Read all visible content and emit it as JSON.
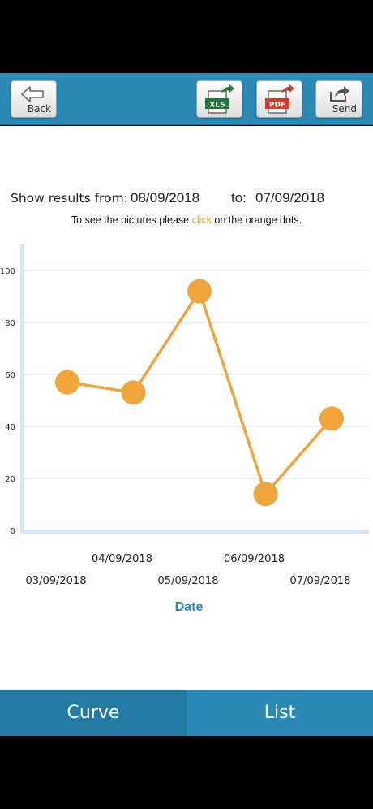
{
  "toolbar": {
    "back_label": "Back",
    "xls_label": "XLS",
    "pdf_label": "PDF",
    "send_label": "Send",
    "colors": {
      "bar": "#2a8ab5",
      "xls": "#1f7a3a",
      "pdf": "#d63a2a"
    }
  },
  "range": {
    "from_label": "Show results from:",
    "from_date": "08/09/2018",
    "to_label": "to:",
    "to_date": "07/09/2018"
  },
  "hint": {
    "before": "To see the pictures please ",
    "link": "click",
    "after": " on the orange dots."
  },
  "chart_data": {
    "type": "line",
    "categories": [
      "03/09/2018",
      "04/09/2018",
      "05/09/2018",
      "06/09/2018",
      "07/09/2018"
    ],
    "x": [
      "03/09/2018",
      "04/09/2018",
      "05/09/2018",
      "06/09/2018",
      "07/09/2018"
    ],
    "values": [
      57,
      53,
      92,
      14,
      43
    ],
    "ylim": [
      0,
      100
    ],
    "yticks": [
      0,
      20,
      40,
      60,
      80,
      100
    ],
    "xlabel": "Date",
    "ylabel": "",
    "grid": true,
    "line_color": "#f0a43c"
  },
  "tabs": [
    {
      "label": "Curve",
      "active": true
    },
    {
      "label": "List",
      "active": false
    }
  ]
}
